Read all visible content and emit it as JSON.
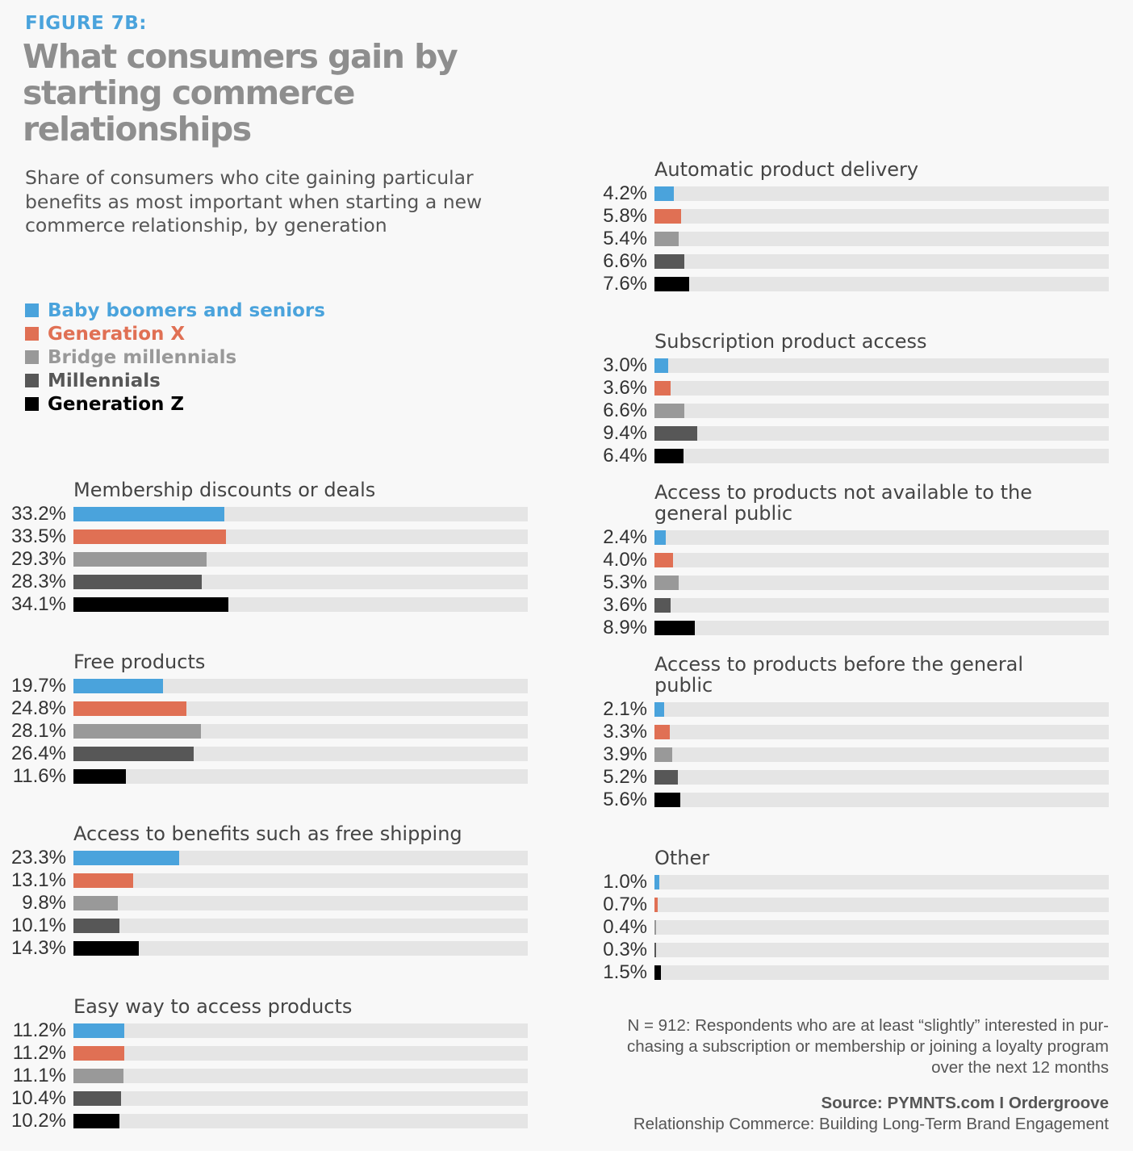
{
  "figure_label": "FIGURE 7B:",
  "title": "What consumers gain by starting commerce relationships",
  "subtitle": "Share of consumers who cite gaining particular benefits as most important when starting a new commerce relationship, by generation",
  "legend": [
    {
      "label": "Baby boomers and seniors",
      "color": "#4aa3dc"
    },
    {
      "label": "Generation X",
      "color": "#e07054"
    },
    {
      "label": "Bridge millennials",
      "color": "#999999"
    },
    {
      "label": "Millennials",
      "color": "#575757"
    },
    {
      "label": "Generation Z",
      "color": "#000000"
    }
  ],
  "chart_data": {
    "type": "bar",
    "orientation": "horizontal",
    "title": "What consumers gain by starting commerce relationships",
    "unit": "%",
    "xlim": [
      0,
      100
    ],
    "series_names": [
      "Baby boomers and seniors",
      "Generation X",
      "Bridge millennials",
      "Millennials",
      "Generation Z"
    ],
    "groups": [
      {
        "category": "Membership discounts or deals",
        "values": [
          33.2,
          33.5,
          29.3,
          28.3,
          34.1
        ],
        "labels": [
          "33.2%",
          "33.5%",
          "29.3%",
          "28.3%",
          "34.1%"
        ]
      },
      {
        "category": "Free products",
        "values": [
          19.7,
          24.8,
          28.1,
          26.4,
          11.6
        ],
        "labels": [
          "19.7%",
          "24.8%",
          "28.1%",
          "26.4%",
          "11.6%"
        ]
      },
      {
        "category": "Access to benefits such as free shipping",
        "values": [
          23.3,
          13.1,
          9.8,
          10.1,
          14.3
        ],
        "labels": [
          "23.3%",
          "13.1%",
          "9.8%",
          "10.1%",
          "14.3%"
        ]
      },
      {
        "category": "Easy way to access products",
        "values": [
          11.2,
          11.2,
          11.1,
          10.4,
          10.2
        ],
        "labels": [
          "11.2%",
          "11.2%",
          "11.1%",
          "10.4%",
          "10.2%"
        ]
      },
      {
        "category": "Automatic product delivery",
        "values": [
          4.2,
          5.8,
          5.4,
          6.6,
          7.6
        ],
        "labels": [
          "4.2%",
          "5.8%",
          "5.4%",
          "6.6%",
          "7.6%"
        ]
      },
      {
        "category": "Subscription product access",
        "values": [
          3.0,
          3.6,
          6.6,
          9.4,
          6.4
        ],
        "labels": [
          "3.0%",
          "3.6%",
          "6.6%",
          "9.4%",
          "6.4%"
        ]
      },
      {
        "category": "Access to products not available to the\ngeneral public",
        "values": [
          2.4,
          4.0,
          5.3,
          3.6,
          8.9
        ],
        "labels": [
          "2.4%",
          "4.0%",
          "5.3%",
          "3.6%",
          "8.9%"
        ]
      },
      {
        "category": "Access to products before the general\npublic",
        "values": [
          2.1,
          3.3,
          3.9,
          5.2,
          5.6
        ],
        "labels": [
          "2.1%",
          "3.3%",
          "3.9%",
          "5.2%",
          "5.6%"
        ]
      },
      {
        "category": "Other",
        "values": [
          1.0,
          0.7,
          0.4,
          0.3,
          1.5
        ],
        "labels": [
          "1.0%",
          "0.7%",
          "0.4%",
          "0.3%",
          "1.5%"
        ]
      }
    ]
  },
  "footnote": "N = 912: Respondents who are at least “slightly” interested in pur-chasing a subscription or membership or joining a loyalty program over the next 12 months",
  "source": {
    "label": "Source: PYMNTS.com  I  Ordergroove",
    "report": "Relationship Commerce: Building Long-Term Brand Engagement"
  }
}
